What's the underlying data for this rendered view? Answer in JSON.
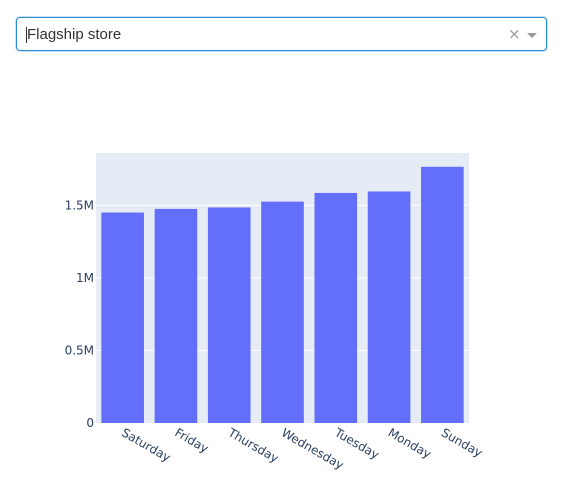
{
  "dropdown": {
    "value": "Flagship store",
    "clear_symbol": "×"
  },
  "colors": {
    "accent": "#2b8cd6",
    "bar": "#636efa",
    "plot_bg": "#e5ecf6",
    "grid": "#ffffff",
    "tick_text": "#2a3f5f"
  },
  "chart_data": {
    "type": "bar",
    "categories": [
      "Saturday",
      "Friday",
      "Thursday",
      "Wednesday",
      "Tuesday",
      "Monday",
      "Sunday"
    ],
    "values": [
      1450000,
      1475000,
      1485000,
      1525000,
      1585000,
      1595000,
      1765000
    ],
    "ylim": [
      0,
      1860000
    ],
    "yticks": [
      0,
      500000,
      1000000,
      1500000
    ],
    "yticklabels": [
      "0",
      "0.5M",
      "1M",
      "1.5M"
    ],
    "grid": true,
    "title": "",
    "xlabel": "",
    "ylabel": ""
  }
}
